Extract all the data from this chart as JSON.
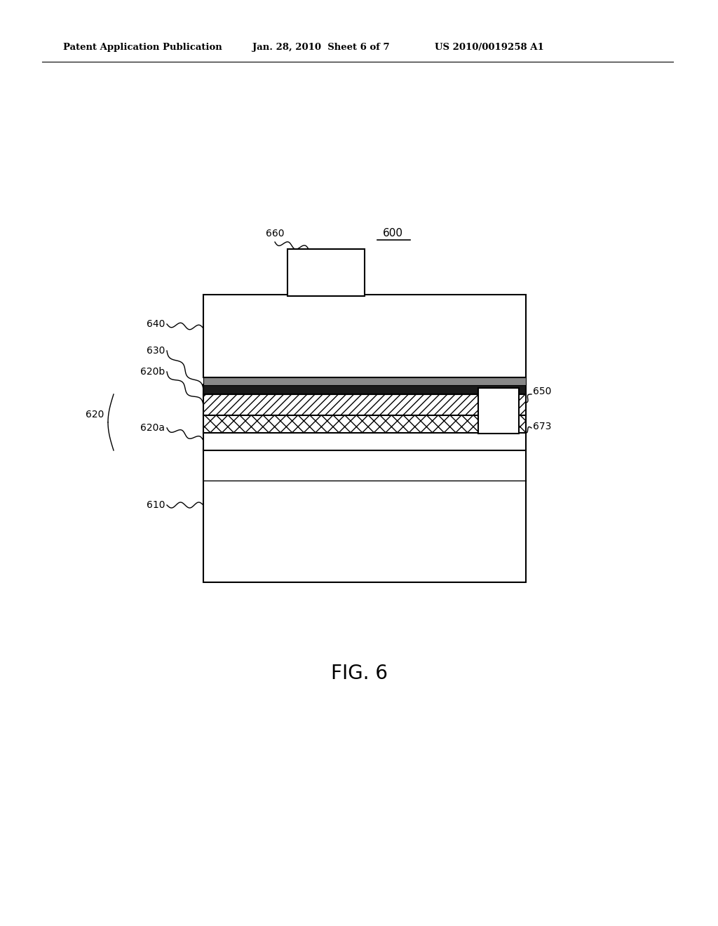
{
  "bg_color": "#ffffff",
  "header_left": "Patent Application Publication",
  "header_mid": "Jan. 28, 2010  Sheet 6 of 7",
  "header_right": "US 2010/0019258 A1",
  "fig_label": "FIG. 6",
  "device_label": "600",
  "lw": 1.5
}
